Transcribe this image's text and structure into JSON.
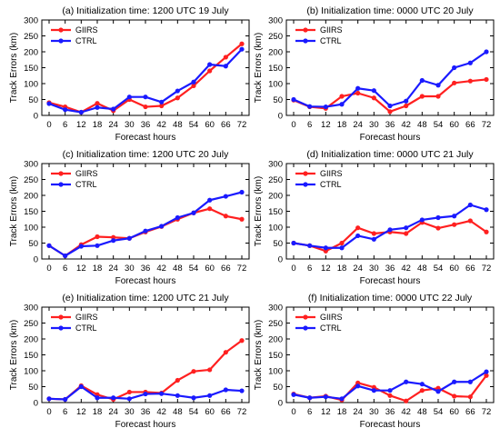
{
  "chart_data": [
    {
      "type": "line",
      "title": "(a) Initialization time: 1200 UTC 19 July",
      "xlabel": "Forecast hours",
      "ylabel": "Track Errors (km)",
      "x": [
        0,
        6,
        12,
        18,
        24,
        30,
        36,
        42,
        48,
        54,
        60,
        66,
        72
      ],
      "ylim": [
        0,
        300
      ],
      "yticks": [
        0,
        50,
        100,
        150,
        200,
        250,
        300
      ],
      "legend_position": "top-left",
      "series": [
        {
          "name": "GIIRS",
          "color": "#ff2020",
          "values": [
            40,
            27,
            10,
            38,
            15,
            50,
            27,
            30,
            55,
            93,
            140,
            183,
            225
          ]
        },
        {
          "name": "CTRL",
          "color": "#1a1aff",
          "values": [
            37,
            18,
            10,
            25,
            20,
            58,
            58,
            42,
            77,
            105,
            160,
            155,
            208
          ]
        }
      ]
    },
    {
      "type": "line",
      "title": "(b) Initialization time: 0000 UTC 20 July",
      "xlabel": "Forecast hours",
      "ylabel": "Track Errors (km)",
      "x": [
        0,
        6,
        12,
        18,
        24,
        30,
        36,
        42,
        48,
        54,
        60,
        66,
        72
      ],
      "ylim": [
        0,
        300
      ],
      "yticks": [
        0,
        50,
        100,
        150,
        200,
        250,
        300
      ],
      "legend_position": "top-left",
      "series": [
        {
          "name": "GIIRS",
          "color": "#ff2020",
          "values": [
            48,
            27,
            22,
            60,
            70,
            55,
            12,
            30,
            60,
            60,
            102,
            108,
            113
          ]
        },
        {
          "name": "CTRL",
          "color": "#1a1aff",
          "values": [
            50,
            28,
            27,
            35,
            85,
            78,
            30,
            45,
            110,
            95,
            150,
            165,
            200
          ]
        }
      ]
    },
    {
      "type": "line",
      "title": "(c) Initialization time: 1200 UTC 20 July",
      "xlabel": "Forecast hours",
      "ylabel": "Track Errors (km)",
      "x": [
        0,
        6,
        12,
        18,
        24,
        30,
        36,
        42,
        48,
        54,
        60,
        66,
        72
      ],
      "ylim": [
        0,
        300
      ],
      "yticks": [
        0,
        50,
        100,
        150,
        200,
        250,
        300
      ],
      "legend_position": "top-left",
      "series": [
        {
          "name": "GIIRS",
          "color": "#ff2020",
          "values": [
            42,
            10,
            45,
            70,
            68,
            65,
            85,
            102,
            125,
            145,
            158,
            135,
            125
          ]
        },
        {
          "name": "CTRL",
          "color": "#1a1aff",
          "values": [
            42,
            10,
            40,
            42,
            58,
            65,
            88,
            103,
            130,
            145,
            185,
            197,
            210
          ]
        }
      ]
    },
    {
      "type": "line",
      "title": "(d) Initialization time: 0000 UTC 21 July",
      "xlabel": "Forecast hours",
      "ylabel": "Track Errors (km)",
      "x": [
        0,
        6,
        12,
        18,
        24,
        30,
        36,
        42,
        48,
        54,
        60,
        66,
        72
      ],
      "ylim": [
        0,
        300
      ],
      "yticks": [
        0,
        50,
        100,
        150,
        200,
        250,
        300
      ],
      "legend_position": "top-left",
      "series": [
        {
          "name": "GIIRS",
          "color": "#ff2020",
          "values": [
            50,
            42,
            25,
            50,
            98,
            80,
            85,
            80,
            115,
            97,
            108,
            120,
            85
          ]
        },
        {
          "name": "CTRL",
          "color": "#1a1aff",
          "values": [
            50,
            42,
            35,
            35,
            73,
            62,
            92,
            98,
            123,
            130,
            135,
            170,
            155
          ]
        }
      ]
    },
    {
      "type": "line",
      "title": "(e) Initialization time: 1200 UTC 21 July",
      "xlabel": "Forecast hours",
      "ylabel": "Track Errors (km)",
      "x": [
        0,
        6,
        12,
        18,
        24,
        30,
        36,
        42,
        48,
        54,
        60,
        66,
        72
      ],
      "ylim": [
        0,
        300
      ],
      "yticks": [
        0,
        50,
        100,
        150,
        200,
        250,
        300
      ],
      "legend_position": "top-left",
      "series": [
        {
          "name": "GIIRS",
          "color": "#ff2020",
          "values": [
            12,
            10,
            53,
            25,
            10,
            33,
            33,
            30,
            70,
            98,
            103,
            158,
            195
          ]
        },
        {
          "name": "CTRL",
          "color": "#1a1aff",
          "values": [
            12,
            10,
            50,
            15,
            15,
            12,
            27,
            28,
            22,
            15,
            22,
            40,
            37
          ]
        }
      ]
    },
    {
      "type": "line",
      "title": "(f) Initialization time: 0000 UTC 22 July",
      "xlabel": "Forecast hours",
      "ylabel": "Track Errors (km)",
      "x": [
        0,
        6,
        12,
        18,
        24,
        30,
        36,
        42,
        48,
        54,
        60,
        66,
        72
      ],
      "ylim": [
        0,
        300
      ],
      "yticks": [
        0,
        50,
        100,
        150,
        200,
        250,
        300
      ],
      "legend_position": "top-left",
      "series": [
        {
          "name": "GIIRS",
          "color": "#ff2020",
          "values": [
            27,
            15,
            20,
            8,
            62,
            48,
            22,
            5,
            38,
            45,
            20,
            18,
            85
          ]
        },
        {
          "name": "CTRL",
          "color": "#1a1aff",
          "values": [
            25,
            15,
            18,
            12,
            52,
            38,
            38,
            65,
            58,
            35,
            65,
            65,
            97
          ]
        }
      ]
    }
  ]
}
